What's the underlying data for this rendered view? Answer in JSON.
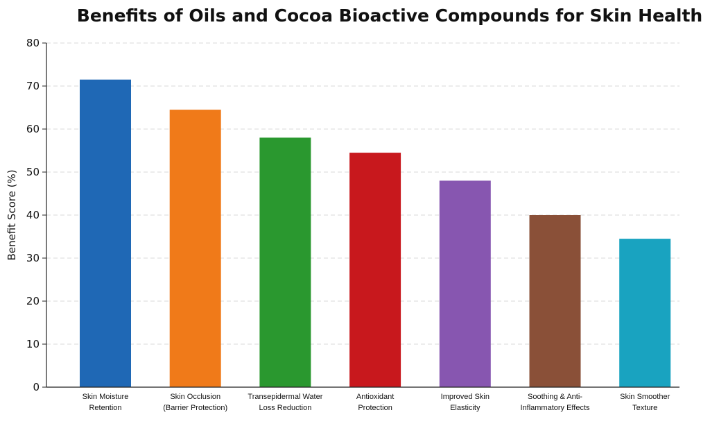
{
  "chart_data": {
    "type": "bar",
    "title": "Benefits of Oils and Cocoa Bioactive Compounds for Skin Health",
    "xlabel": "",
    "ylabel": "Benefit Score (%)",
    "ylim": [
      0,
      80
    ],
    "yticks": [
      0,
      10,
      20,
      30,
      40,
      50,
      60,
      70,
      80
    ],
    "grid": true,
    "categories": [
      [
        "Skin Moisture",
        "Retention"
      ],
      [
        "Skin Occlusion",
        "(Barrier Protection)"
      ],
      [
        "Transepidermal Water",
        "Loss Reduction"
      ],
      [
        "Antioxidant",
        "Protection"
      ],
      [
        "Improved Skin",
        "Elasticity"
      ],
      [
        "Soothing & Anti-",
        "Inflammatory Effects"
      ],
      [
        "Skin Smoother",
        "Texture"
      ]
    ],
    "values": [
      71.5,
      64.5,
      58,
      54.5,
      48,
      40,
      34.5
    ],
    "colors": [
      "#1f68b5",
      "#f07a19",
      "#2a982f",
      "#c8181d",
      "#8756b0",
      "#8a5038",
      "#19a3c0"
    ]
  }
}
